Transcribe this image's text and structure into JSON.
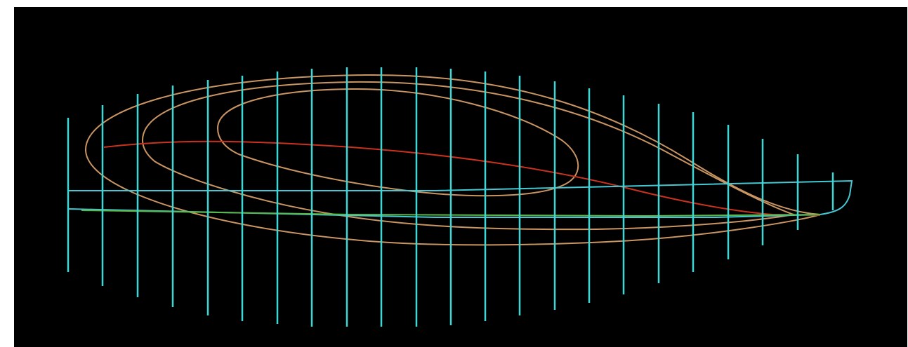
{
  "colors": {
    "background": "#000000",
    "stations": "#3fd6d8",
    "waterline": "#45c8d4",
    "buttock": "#c99563",
    "deck_sheer": "#c8321f",
    "keel": "#5ab848"
  },
  "icons": [
    "hull-lines-drawing"
  ]
}
